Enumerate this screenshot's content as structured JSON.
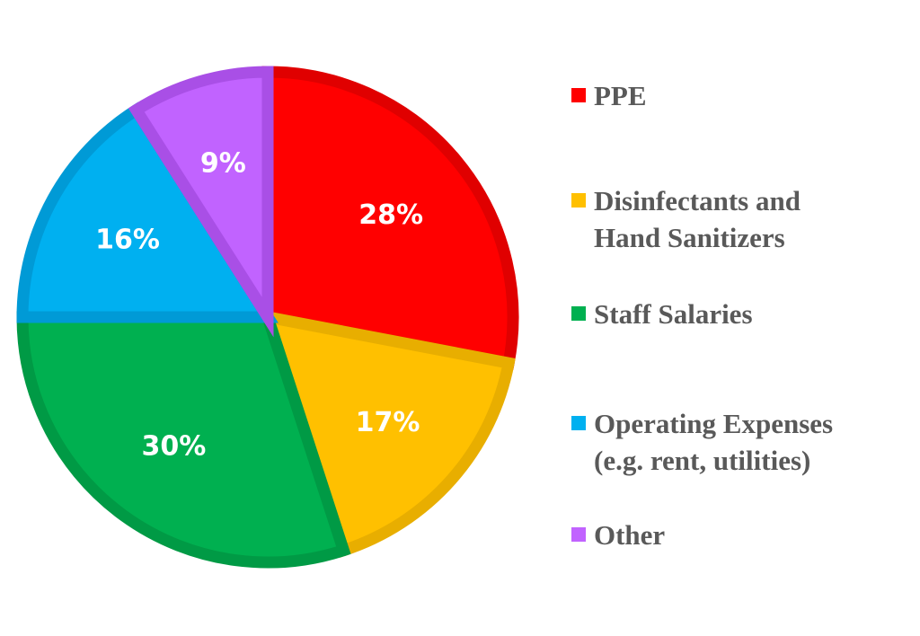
{
  "chart_data": {
    "type": "pie",
    "start_angle_deg": 0,
    "direction": "clockwise",
    "slices": [
      {
        "name": "PPE",
        "value": 28,
        "label": "28%",
        "color": "#FF0000",
        "border": "#E00000"
      },
      {
        "name": "Disinfectants and\nHand Sanitizers",
        "value": 17,
        "label": "17%",
        "color": "#FFC000",
        "border": "#E8AE00"
      },
      {
        "name": "Staff Salaries",
        "value": 30,
        "label": "30%",
        "color": "#00B050",
        "border": "#009A45"
      },
      {
        "name": "Operating Expenses\n(e.g. rent, utilities)",
        "value": 16,
        "label": "16%",
        "color": "#00B0F0",
        "border": "#009AD6"
      },
      {
        "name": "Other",
        "value": 9,
        "label": "9%",
        "color": "#C163FF",
        "border": "#A94FE6"
      }
    ],
    "legend_position": "right"
  }
}
